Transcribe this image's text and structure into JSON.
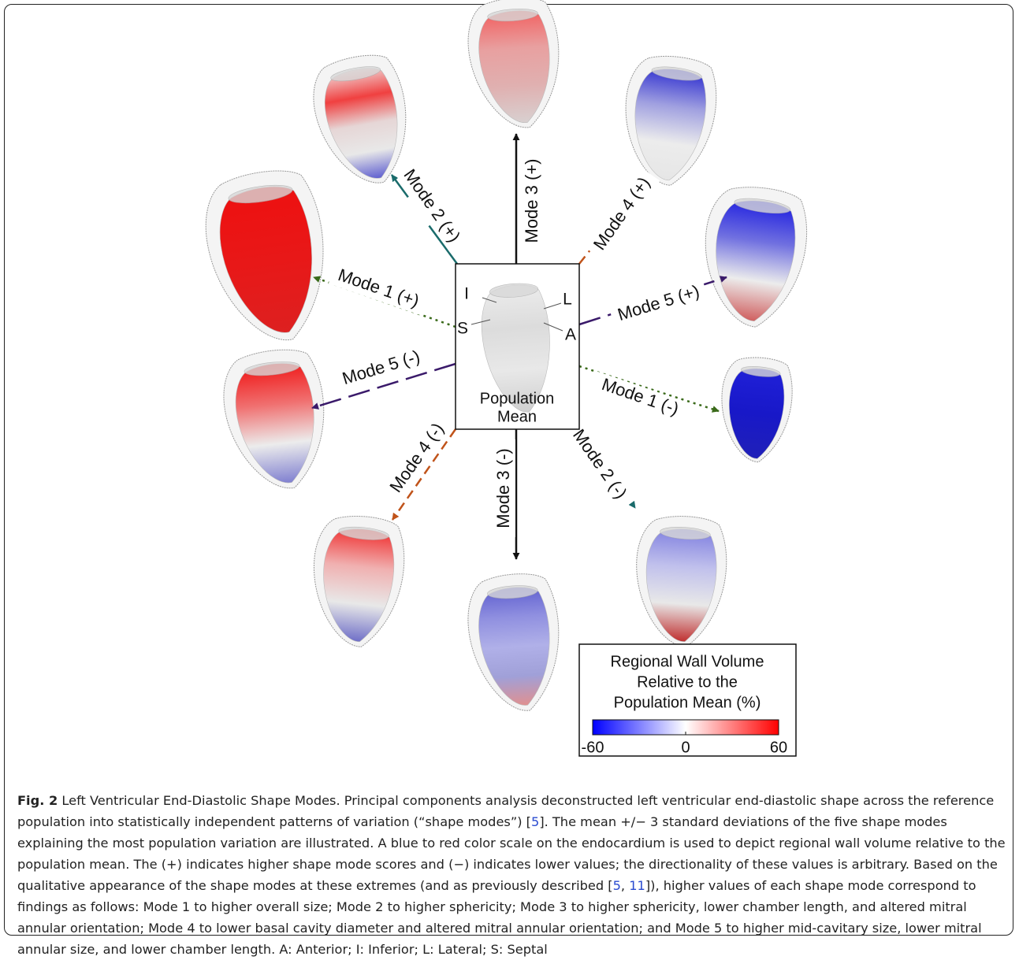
{
  "center": {
    "lines": [
      "Population",
      "Mean"
    ],
    "orientation": [
      "I",
      "L",
      "S",
      "A"
    ]
  },
  "modes": [
    "Mode 3 (+)",
    "Mode 3 (-)",
    "Mode 2 (+)",
    "Mode 2 (-)",
    "Mode 4 (+)",
    "Mode 4 (-)",
    "Mode 1 (+)",
    "Mode 1 (-)",
    "Mode 5 (+)",
    "Mode 5 (-)"
  ],
  "legend": {
    "title_lines": [
      "Regional Wall Volume",
      "Relative to the",
      "Population Mean (%)"
    ],
    "lim": [
      -60,
      60
    ],
    "ticks": [
      -60,
      0,
      60
    ]
  },
  "caption": {
    "label": "Fig. 2",
    "segments": [
      {
        "text": " Left Ventricular End-Diastolic Shape Modes. Principal components analysis deconstructed left ventricular end-diastolic shape across the reference population into statistically independent patterns of variation (“shape modes”) ["
      },
      {
        "ref": "5"
      },
      {
        "text": "]. The mean +/− 3 standard deviations of the five shape modes explaining the most population variation are illustrated. A blue to red color scale on the endocardium is used to depict regional wall volume relative to the population mean. The (+) indicates higher shape mode scores and (−) indicates lower values; the directionality of these values is arbitrary. Based on the qualitative appearance of the shape modes at these extremes (and as previously described ["
      },
      {
        "ref": "5"
      },
      {
        "text": ", "
      },
      {
        "ref": "11"
      },
      {
        "text": "]), higher values of each shape mode correspond to findings as follows: Mode 1 to higher overall size; Mode 2 to higher sphericity; Mode 3 to higher sphericity, lower chamber length, and altered mitral annular orientation; Mode 4 to lower basal cavity diameter and altered mitral annular orientation; and Mode 5 to higher mid-cavitary size, lower mitral annular size, and lower chamber length. A: Anterior; I: Inferior; L: Lateral; S: Septal"
      }
    ]
  }
}
